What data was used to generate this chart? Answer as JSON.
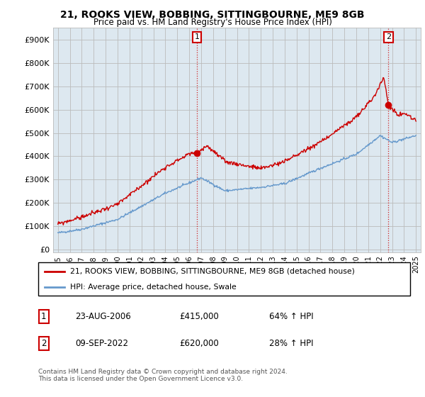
{
  "title": "21, ROOKS VIEW, BOBBING, SITTINGBOURNE, ME9 8GB",
  "subtitle": "Price paid vs. HM Land Registry's House Price Index (HPI)",
  "yticks": [
    0,
    100000,
    200000,
    300000,
    400000,
    500000,
    600000,
    700000,
    800000,
    900000
  ],
  "ylim": [
    -10000,
    950000
  ],
  "xlim": [
    1994.6,
    2025.4
  ],
  "transaction1": {
    "date_num": 2006.64,
    "price": 415000,
    "label": "1",
    "date_str": "23-AUG-2006",
    "pct": "64% ↑ HPI"
  },
  "transaction2": {
    "date_num": 2022.69,
    "price": 620000,
    "label": "2",
    "date_str": "09-SEP-2022",
    "pct": "28% ↑ HPI"
  },
  "legend_property": "21, ROOKS VIEW, BOBBING, SITTINGBOURNE, ME9 8GB (detached house)",
  "legend_hpi": "HPI: Average price, detached house, Swale",
  "footer": "Contains HM Land Registry data © Crown copyright and database right 2024.\nThis data is licensed under the Open Government Licence v3.0.",
  "property_color": "#cc0000",
  "hpi_color": "#6699cc",
  "grid_color": "#bbbbbb",
  "plot_bg_color": "#dde8f0",
  "fig_bg_color": "#ffffff",
  "annotation_box_color": "#cc0000",
  "title_fontsize": 10,
  "subtitle_fontsize": 8.5,
  "tick_fontsize": 8,
  "xtick_fontsize": 7
}
